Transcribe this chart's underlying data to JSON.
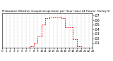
{
  "title": "Milwaukee Weather Evapotranspiration per Hour (Last 24 Hours) (Oz/sq ft)",
  "hours": [
    0,
    1,
    2,
    3,
    4,
    5,
    6,
    7,
    8,
    9,
    10,
    11,
    12,
    13,
    14,
    15,
    16,
    17,
    18,
    19,
    20,
    21,
    22,
    23
  ],
  "values": [
    0,
    0,
    0,
    0,
    0,
    0,
    0,
    0.003,
    0.01,
    0.025,
    0.05,
    0.065,
    0.068,
    0.068,
    0.068,
    0.065,
    0.045,
    0.045,
    0.018,
    0.003,
    0,
    0,
    0,
    0
  ],
  "line_color": "#ff0000",
  "bg_color": "#ffffff",
  "grid_color": "#999999",
  "ylim": [
    0,
    0.075
  ],
  "ytick_vals": [
    0.01,
    0.02,
    0.03,
    0.04,
    0.05,
    0.06,
    0.07
  ],
  "title_fontsize": 3.0,
  "ylabel_fontsize": 3.5,
  "xlabel_fontsize": 3.0
}
